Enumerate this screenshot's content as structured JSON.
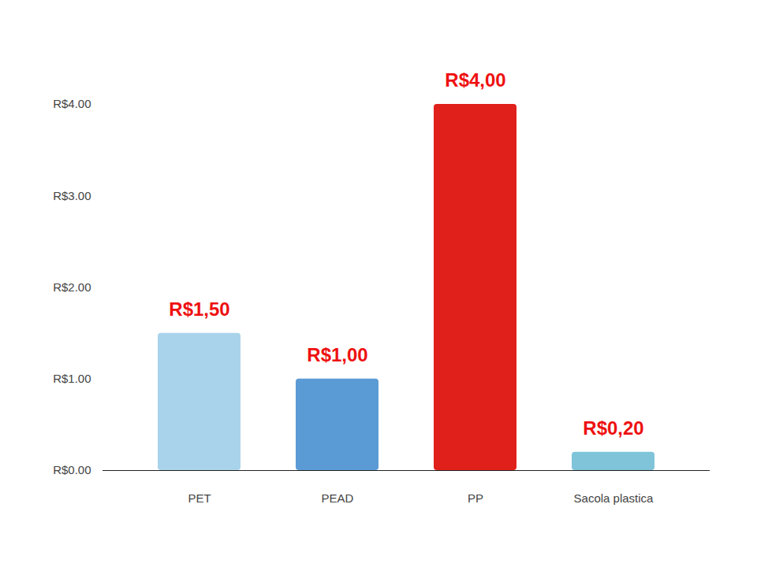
{
  "chart_data": {
    "type": "bar",
    "categories": [
      "PET",
      "PEAD",
      "PP",
      "Sacola plastica"
    ],
    "values": [
      1.5,
      1.0,
      4.0,
      0.2
    ],
    "value_labels": [
      "R$1,50",
      "R$1,00",
      "R$4,00",
      "R$0,20"
    ],
    "colors": [
      "#a9d3ea",
      "#5b9bd5",
      "#e0201b",
      "#7fc4d8"
    ],
    "ylim": [
      0,
      4
    ],
    "yticks": [
      {
        "value": 0,
        "label": "R$0.00"
      },
      {
        "value": 1,
        "label": "R$1.00"
      },
      {
        "value": 2,
        "label": "R$2.00"
      },
      {
        "value": 3,
        "label": "R$3.00"
      },
      {
        "value": 4,
        "label": "R$4.00"
      }
    ],
    "data_labels": true,
    "grid": false
  }
}
